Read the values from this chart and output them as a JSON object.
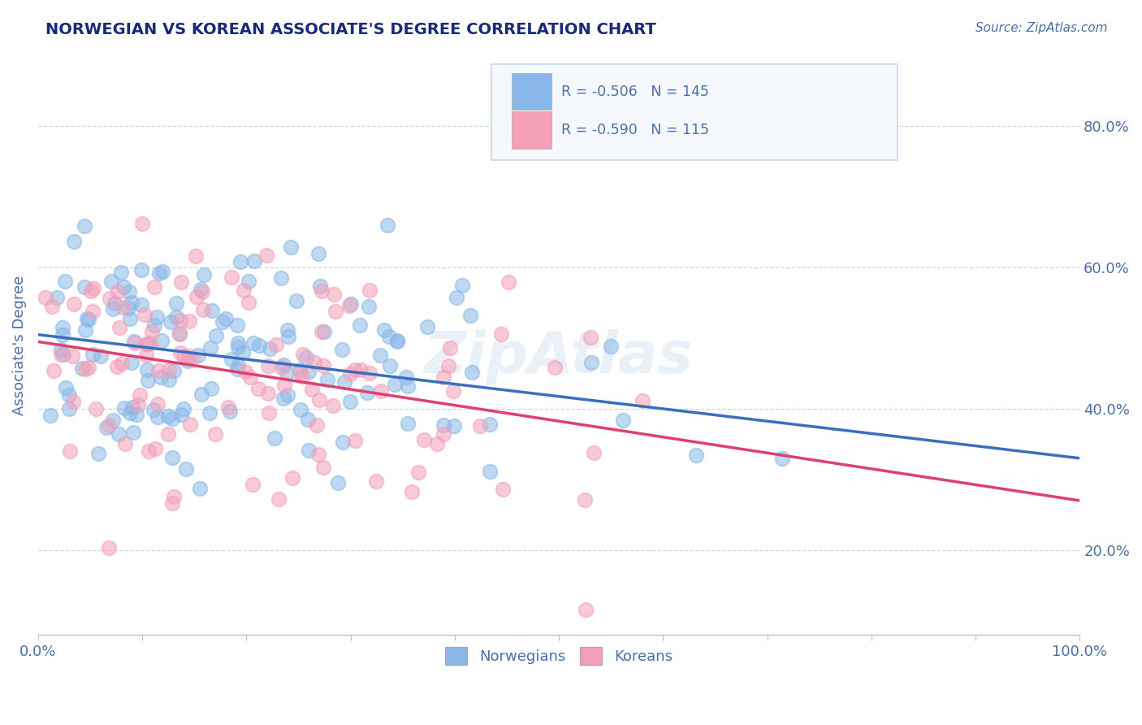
{
  "title": "NORWEGIAN VS KOREAN ASSOCIATE'S DEGREE CORRELATION CHART",
  "source_text": "Source: ZipAtlas.com",
  "ylabel": "Associate's Degree",
  "watermark": "ZipAtlas",
  "blue_color": "#89b8e8",
  "pink_color": "#f4a0b8",
  "blue_line_color": "#3a6fbf",
  "pink_line_color": "#e04070",
  "title_color": "#1a2a7a",
  "axis_color": "#4a6fa5",
  "grid_color": "#c8d8e8",
  "background_color": "#ffffff",
  "xmin": 0.0,
  "xmax": 1.0,
  "ymin": 0.08,
  "ymax": 0.9,
  "y_ticks": [
    0.2,
    0.4,
    0.6,
    0.8
  ],
  "nor_intercept": 0.505,
  "nor_slope": -0.175,
  "kor_intercept": 0.495,
  "kor_slope": -0.225,
  "norwegian_R": -0.506,
  "norwegian_N": 145,
  "korean_R": -0.59,
  "korean_N": 115,
  "seed": 7
}
